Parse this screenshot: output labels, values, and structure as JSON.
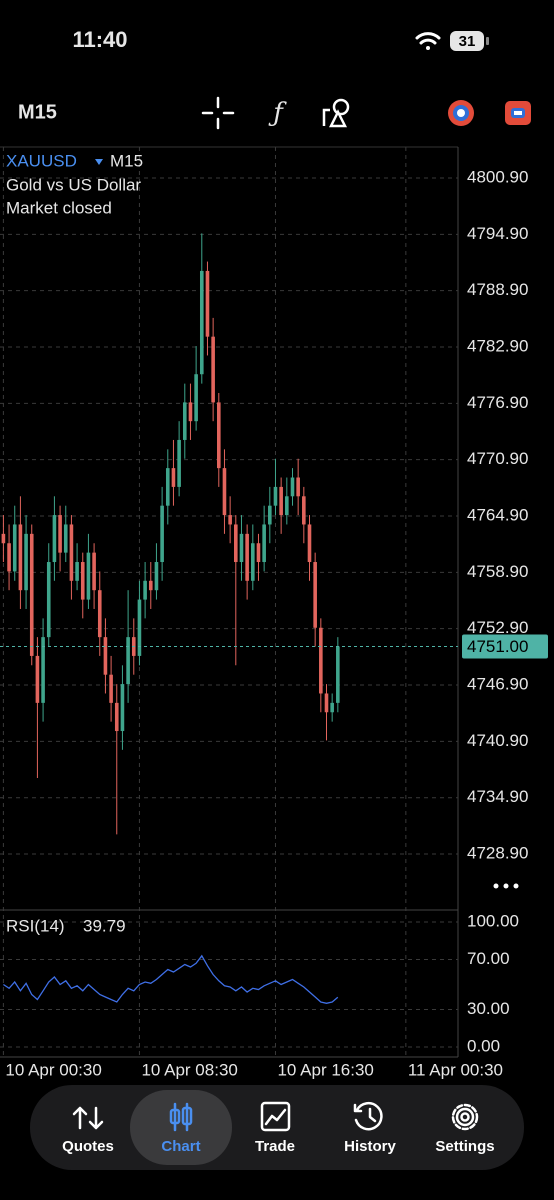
{
  "status_bar": {
    "time": "11:40",
    "battery": "31"
  },
  "toolbar": {
    "timeframe": "M15"
  },
  "chart_data": [
    {
      "type": "candlestick",
      "symbol": "XAUUSD",
      "timeframe": "M15",
      "description": "Gold vs US Dollar",
      "status": "Market closed",
      "up_color": "#3fa58c",
      "down_color": "#e2655d",
      "grid": true,
      "open": [
        4763,
        4762,
        4759,
        4764,
        4757,
        4763,
        4750,
        4745,
        4752,
        4760,
        4765,
        4761,
        4764,
        4758,
        4760,
        4756,
        4761,
        4757,
        4752,
        4748,
        4745,
        4742,
        4747,
        4752,
        4750,
        4756,
        4758,
        4757,
        4760,
        4766,
        4770,
        4768,
        4773,
        4777,
        4775,
        4780,
        4791,
        4784,
        4777,
        4770,
        4765,
        4764,
        4760,
        4763,
        4758,
        4762,
        4760,
        4764,
        4766,
        4768,
        4765,
        4767,
        4769,
        4767,
        4764,
        4760,
        4753,
        4746,
        4744,
        4745
      ],
      "high": [
        4765,
        4764,
        4766,
        4767,
        4765,
        4764,
        4752,
        4754,
        4762,
        4767,
        4766,
        4766,
        4765,
        4762,
        4761,
        4763,
        4762,
        4759,
        4754,
        4750,
        4747,
        4749,
        4757,
        4754,
        4758,
        4760,
        4760,
        4762,
        4768,
        4772,
        4773,
        4775,
        4779,
        4779,
        4783,
        4795,
        4792,
        4786,
        4778,
        4772,
        4767,
        4765,
        4765,
        4764,
        4764,
        4763,
        4766,
        4768,
        4771,
        4769,
        4769,
        4770,
        4771,
        4768,
        4765,
        4761,
        4754,
        4747,
        4746,
        4752
      ],
      "low": [
        4760,
        4757,
        4758,
        4755,
        4755,
        4749,
        4737,
        4743,
        4751,
        4758,
        4759,
        4760,
        4756,
        4757,
        4754,
        4755,
        4755,
        4750,
        4746,
        4743,
        4731,
        4740,
        4745,
        4748,
        4749,
        4754,
        4755,
        4756,
        4758,
        4764,
        4766,
        4767,
        4771,
        4773,
        4774,
        4779,
        4782,
        4775,
        4768,
        4763,
        4762,
        4749,
        4758,
        4756,
        4757,
        4758,
        4759,
        4762,
        4765,
        4763,
        4764,
        4766,
        4765,
        4762,
        4758,
        4751,
        4744,
        4741,
        4743,
        4744
      ],
      "close": [
        4762,
        4759,
        4764,
        4757,
        4763,
        4750,
        4745,
        4752,
        4760,
        4765,
        4761,
        4764,
        4758,
        4760,
        4756,
        4761,
        4757,
        4752,
        4748,
        4745,
        4742,
        4747,
        4752,
        4750,
        4756,
        4758,
        4757,
        4760,
        4766,
        4770,
        4768,
        4773,
        4777,
        4775,
        4780,
        4791,
        4784,
        4777,
        4770,
        4765,
        4764,
        4760,
        4763,
        4758,
        4762,
        4760,
        4764,
        4766,
        4768,
        4765,
        4767,
        4769,
        4767,
        4764,
        4760,
        4753,
        4746,
        4744,
        4745,
        4751
      ],
      "xlim": [
        -0.6,
        80.2
      ],
      "xticks": [
        {
          "value": 0,
          "label": "10 Apr 00:30"
        },
        {
          "value": 24,
          "label": "10 Apr 08:30"
        },
        {
          "value": 48,
          "label": "10 Apr 16:30"
        },
        {
          "value": 71,
          "label": "11 Apr 00:30"
        }
      ],
      "ylim": [
        4722.94,
        4804.2
      ],
      "yticks": [
        {
          "value": 4800.9,
          "label": "4800.90"
        },
        {
          "value": 4794.9,
          "label": "4794.90"
        },
        {
          "value": 4788.9,
          "label": "4788.90"
        },
        {
          "value": 4782.9,
          "label": "4782.90"
        },
        {
          "value": 4776.9,
          "label": "4776.90"
        },
        {
          "value": 4770.9,
          "label": "4770.90"
        },
        {
          "value": 4764.9,
          "label": "4764.90"
        },
        {
          "value": 4758.9,
          "label": "4758.90"
        },
        {
          "value": 4752.9,
          "label": "4752.90"
        },
        {
          "value": 4746.9,
          "label": "4746.90"
        },
        {
          "value": 4740.9,
          "label": "4740.90"
        },
        {
          "value": 4734.9,
          "label": "4734.90"
        },
        {
          "value": 4728.9,
          "label": "4728.90"
        }
      ],
      "current_price": {
        "value": 4751,
        "label": "4751.00"
      },
      "current_price_color": "#4fb3a6"
    },
    {
      "type": "line",
      "name": "RSI(14)",
      "color": "#3f6fe6",
      "values": [
        50,
        47,
        52,
        45,
        51,
        42,
        38,
        45,
        52,
        56,
        50,
        53,
        47,
        49,
        45,
        50,
        46,
        42,
        40,
        38,
        36,
        42,
        47,
        45,
        50,
        52,
        51,
        54,
        58,
        62,
        60,
        63,
        66,
        64,
        67,
        73,
        65,
        58,
        53,
        49,
        48,
        45,
        48,
        44,
        47,
        46,
        49,
        51,
        53,
        50,
        52,
        54,
        51,
        48,
        44,
        40,
        36,
        35,
        36,
        39.79
      ],
      "ylim": [
        -8,
        109.6
      ],
      "yticks": [
        {
          "value": 100,
          "label": "100.00"
        },
        {
          "value": 70,
          "label": "70.00"
        },
        {
          "value": 30,
          "label": "30.00"
        },
        {
          "value": 0,
          "label": "0.00"
        }
      ]
    }
  ],
  "tab_bar": {
    "items": [
      "Quotes",
      "Chart",
      "Trade",
      "History",
      "Settings"
    ],
    "active": 1
  }
}
